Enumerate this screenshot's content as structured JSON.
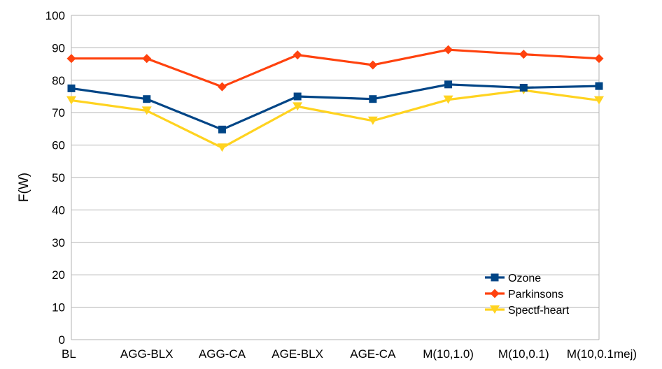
{
  "chart_data": {
    "type": "line",
    "title": "",
    "xlabel": "",
    "ylabel": "F(W)",
    "ylim": [
      0,
      100
    ],
    "yticks": [
      0,
      10,
      20,
      30,
      40,
      50,
      60,
      70,
      80,
      90,
      100
    ],
    "grid": "horizontal",
    "legend_position": "bottom-right",
    "categories": [
      "BL",
      "AGG-BLX",
      "AGG-CA",
      "AGE-BLX",
      "AGE-CA",
      "M(10,1.0)",
      "M(10,0.1)",
      "M(10,0.1mej)"
    ],
    "series": [
      {
        "name": "Ozone",
        "color": "#004586",
        "marker": "square",
        "values": [
          77.5,
          74.2,
          64.8,
          75.0,
          74.2,
          78.7,
          77.7,
          78.2
        ]
      },
      {
        "name": "Parkinsons",
        "color": "#ff420e",
        "marker": "diamond",
        "values": [
          86.7,
          86.7,
          78.0,
          87.8,
          84.7,
          89.4,
          88.0,
          86.7
        ]
      },
      {
        "name": "Spectf-heart",
        "color": "#ffd320",
        "marker": "triangle-down",
        "values": [
          73.8,
          70.6,
          59.2,
          71.9,
          67.5,
          74.0,
          76.9,
          73.8
        ]
      }
    ]
  }
}
